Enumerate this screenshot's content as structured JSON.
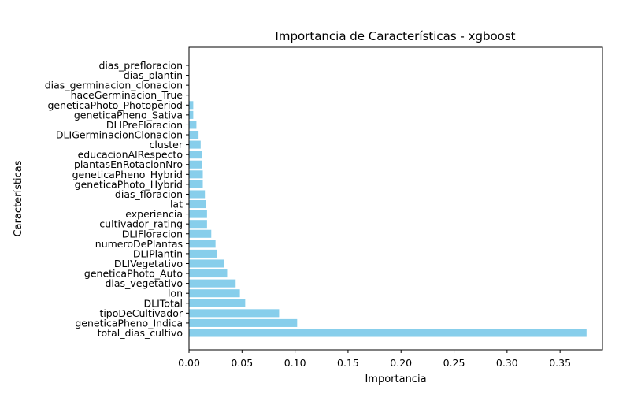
{
  "chart_data": {
    "type": "bar",
    "orientation": "horizontal",
    "title": "Importancia de Características - xgboost",
    "xlabel": "Importancia",
    "ylabel": "Características",
    "xlim": [
      0,
      0.39
    ],
    "xticks": [
      0.0,
      0.05,
      0.1,
      0.15,
      0.2,
      0.25,
      0.3,
      0.35
    ],
    "xtick_labels": [
      "0.00",
      "0.05",
      "0.10",
      "0.15",
      "0.20",
      "0.25",
      "0.30",
      "0.35"
    ],
    "bar_color": "#87ceeb",
    "grid": false,
    "categories": [
      "dias_prefloracion",
      "dias_plantin",
      "dias_germinacion_clonacion",
      "haceGerminacion_True",
      "geneticaPhoto_Photoperiod",
      "geneticaPheno_Sativa",
      "DLIPreFloracion",
      "DLIGerminacionClonacion",
      "cluster",
      "educacionAlRespecto",
      "plantasEnRotacionNro",
      "geneticaPheno_Hybrid",
      "geneticaPhoto_Hybrid",
      "dias_floracion",
      "lat",
      "experiencia",
      "cultivador_rating",
      "DLIFloracion",
      "numeroDePlantas",
      "DLIPlantin",
      "DLIVegetativo",
      "geneticaPhoto_Auto",
      "dias_vegetativo",
      "lon",
      "DLITotal",
      "tipoDeCultivador",
      "geneticaPheno_Indica",
      "total_dias_cultivo"
    ],
    "values": [
      0.0,
      0.0,
      0.0,
      0.0,
      0.004,
      0.004,
      0.007,
      0.009,
      0.011,
      0.012,
      0.012,
      0.013,
      0.013,
      0.015,
      0.016,
      0.017,
      0.017,
      0.021,
      0.025,
      0.026,
      0.033,
      0.036,
      0.044,
      0.048,
      0.053,
      0.085,
      0.102,
      0.375
    ]
  }
}
